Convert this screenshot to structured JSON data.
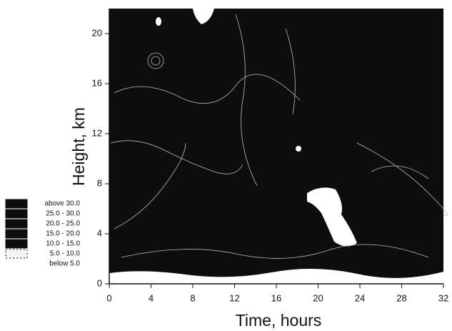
{
  "chart_data": {
    "type": "contour",
    "x_label": "Time, hours",
    "y_label": "Height, km",
    "xlim": [
      0,
      32
    ],
    "xticks": [
      0,
      4,
      8,
      12,
      16,
      20,
      24,
      28,
      32
    ],
    "ylim": [
      0,
      22
    ],
    "yticks": [
      0,
      4,
      8,
      12,
      16,
      20
    ],
    "legend": [
      {
        "label": "above  30.0",
        "color": "#0d0d0d"
      },
      {
        "label": "25.0 - 30.0",
        "color": "#0d0d0d"
      },
      {
        "label": "20.0 - 25.0",
        "color": "#0d0d0d"
      },
      {
        "label": "15.0 - 20.0",
        "color": "#0d0d0d"
      },
      {
        "label": "10.0 - 15.0",
        "color": "#0d0d0d"
      },
      {
        "label": "5.0 - 10.0",
        "color": "#f4f4f4"
      },
      {
        "label": "below  5.0",
        "color": "#ffffff"
      }
    ]
  }
}
